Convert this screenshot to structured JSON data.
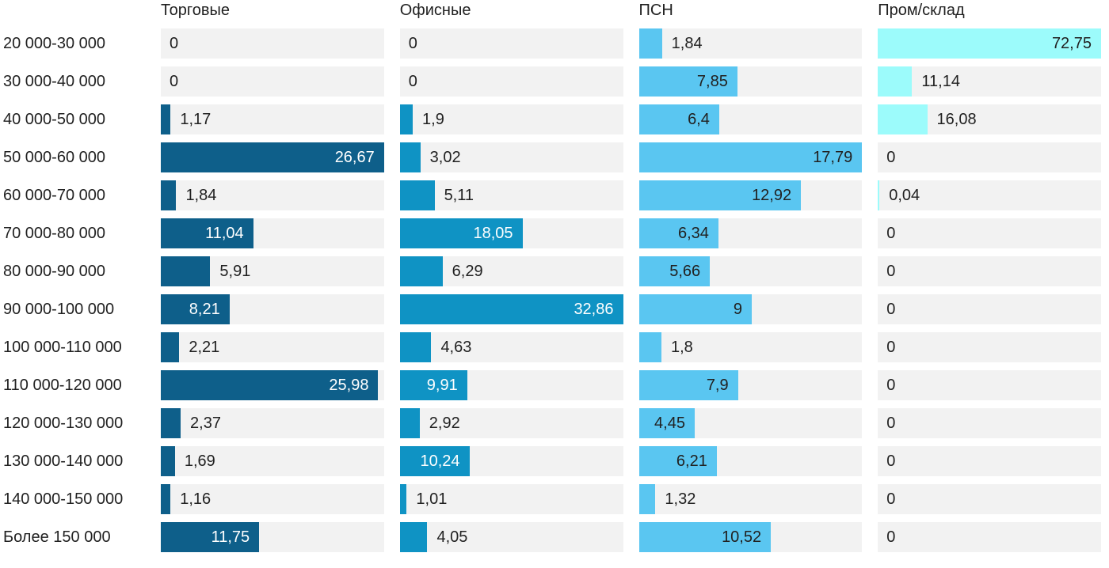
{
  "chart_data": {
    "type": "bar",
    "orientation": "horizontal",
    "title": "",
    "xlabel": "",
    "ylabel": "",
    "legend_position": "column headers on top",
    "grid": false,
    "scaling_note": "each column of bars is scaled independently so that the column maximum fills the full track width",
    "track_color": "#f2f2f2",
    "text_color": "#212121",
    "categories": [
      "20 000-30 000",
      "30 000-40 000",
      "40 000-50 000",
      "50 000-60 000",
      "60 000-70 000",
      "70 000-80 000",
      "80 000-90 000",
      "90 000-100 000",
      "100 000-110 000",
      "110 000-120 000",
      "120 000-130 000",
      "130 000-140 000",
      "140 000-150 000",
      "Более 150 000"
    ],
    "series": [
      {
        "name": "Торговые",
        "color": "#0e5f8a",
        "label_inside_color": "#ffffff",
        "max": 26.67,
        "values": [
          0,
          0,
          1.17,
          26.67,
          1.84,
          11.04,
          5.91,
          8.21,
          2.21,
          25.98,
          2.37,
          1.69,
          1.16,
          11.75
        ],
        "labels": [
          "0",
          "0",
          "1,17",
          "26,67",
          "1,84",
          "11,04",
          "5,91",
          "8,21",
          "2,21",
          "25,98",
          "2,37",
          "1,69",
          "1,16",
          "11,75"
        ]
      },
      {
        "name": "Офисные",
        "color": "#0f93c4",
        "label_inside_color": "#ffffff",
        "max": 32.86,
        "values": [
          0,
          0,
          1.9,
          3.02,
          5.11,
          18.05,
          6.29,
          32.86,
          4.63,
          9.91,
          2.92,
          10.24,
          1.01,
          4.05
        ],
        "labels": [
          "0",
          "0",
          "1,9",
          "3,02",
          "5,11",
          "18,05",
          "6,29",
          "32,86",
          "4,63",
          "9,91",
          "2,92",
          "10,24",
          "1,01",
          "4,05"
        ]
      },
      {
        "name": "ПСН",
        "color": "#5ac6f1",
        "label_inside_color": "#212121",
        "max": 17.79,
        "values": [
          1.84,
          7.85,
          6.4,
          17.79,
          12.92,
          6.34,
          5.66,
          9,
          1.8,
          7.9,
          4.45,
          6.21,
          1.32,
          10.52
        ],
        "labels": [
          "1,84",
          "7,85",
          "6,4",
          "17,79",
          "12,92",
          "6,34",
          "5,66",
          "9",
          "1,8",
          "7,9",
          "4,45",
          "6,21",
          "1,32",
          "10,52"
        ]
      },
      {
        "name": "Пром/склад",
        "color": "#9cfbfb",
        "label_inside_color": "#212121",
        "max": 72.75,
        "values": [
          72.75,
          11.14,
          16.08,
          0,
          0.04,
          0,
          0,
          0,
          0,
          0,
          0,
          0,
          0,
          0
        ],
        "labels": [
          "72,75",
          "11,14",
          "16,08",
          "0",
          "0,04",
          "0",
          "0",
          "0",
          "0",
          "0",
          "0",
          "0",
          "0",
          "0"
        ]
      }
    ]
  }
}
